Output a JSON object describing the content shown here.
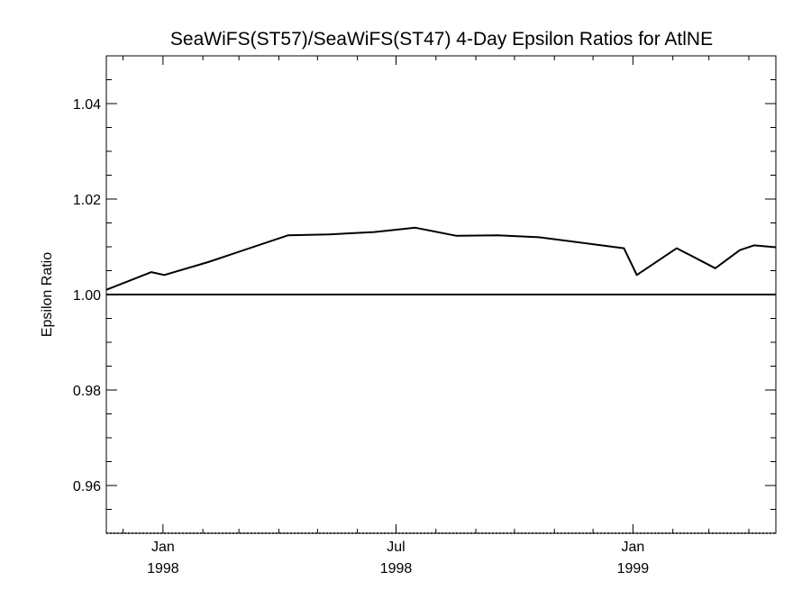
{
  "chart_data": {
    "type": "line",
    "title": "SeaWiFS(ST57)/SeaWiFS(ST47) 4-Day Epsilon Ratios for AtlNE",
    "xlabel": "",
    "ylabel": "Epsilon Ratio",
    "ylim": [
      0.95,
      1.05
    ],
    "xlim": [
      "1997-11-18",
      "1999-04-22"
    ],
    "y_ticks": [
      {
        "value": 0.96,
        "label": "0.96"
      },
      {
        "value": 0.98,
        "label": "0.98"
      },
      {
        "value": 1.0,
        "label": "1.00"
      },
      {
        "value": 1.02,
        "label": "1.02"
      },
      {
        "value": 1.04,
        "label": "1.04"
      }
    ],
    "x_ticks": [
      {
        "date": "1998-01-01",
        "month": "Jan",
        "year": "1998"
      },
      {
        "date": "1998-07-01",
        "month": "Jul",
        "year": "1998"
      },
      {
        "date": "1999-01-01",
        "month": "Jan",
        "year": "1999"
      }
    ],
    "reference_line": 1.0,
    "grid": false,
    "series": [
      {
        "color": "#000000",
        "x": [
          "1997-11-18",
          "1997-12-23",
          "1998-01-02",
          "1998-02-05",
          "1998-04-08",
          "1998-05-10",
          "1998-06-14",
          "1998-07-16",
          "1998-08-17",
          "1998-09-18",
          "1998-10-20",
          "1998-12-25",
          "1999-01-04",
          "1999-02-04",
          "1999-03-06",
          "1999-03-25",
          "1999-04-05",
          "1999-04-22"
        ],
        "values": [
          1.001,
          1.0047,
          1.0041,
          1.0068,
          1.0124,
          1.0126,
          1.0131,
          1.014,
          1.0123,
          1.0124,
          1.012,
          1.0097,
          1.0041,
          1.0097,
          1.0055,
          1.0093,
          1.0103,
          1.0099
        ]
      }
    ]
  }
}
